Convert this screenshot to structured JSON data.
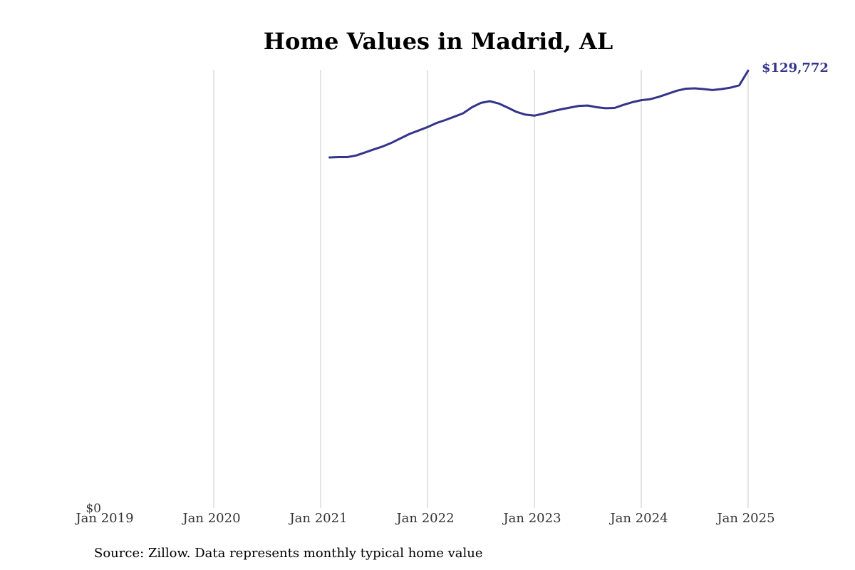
{
  "chart_data": {
    "type": "line",
    "title": "Home Values in Madrid, AL",
    "source": "Source: Zillow. Data represents monthly typical home value",
    "xlabel": "",
    "ylabel": "",
    "x_ticks": [
      "Jan 2019",
      "Jan 2020",
      "Jan 2021",
      "Jan 2022",
      "Jan 2023",
      "Jan 2024",
      "Jan 2025"
    ],
    "y_ticks": [
      "$0"
    ],
    "ylim": [
      0,
      130000
    ],
    "xlim": [
      "2019-01",
      "2025-01"
    ],
    "grid": "vertical",
    "legend": "none",
    "end_label": "$129,772",
    "line_color": "#34348a",
    "series": [
      {
        "x": [
          "2021-02",
          "2021-03",
          "2021-04",
          "2021-05",
          "2021-06",
          "2021-07",
          "2021-08",
          "2021-09",
          "2021-10",
          "2021-11",
          "2021-12",
          "2022-01",
          "2022-02",
          "2022-03",
          "2022-04",
          "2022-05",
          "2022-06",
          "2022-07",
          "2022-08",
          "2022-09",
          "2022-10",
          "2022-11",
          "2022-12",
          "2023-01",
          "2023-02",
          "2023-03",
          "2023-04",
          "2023-05",
          "2023-06",
          "2023-07",
          "2023-08",
          "2023-09",
          "2023-10",
          "2023-11",
          "2023-12",
          "2024-01",
          "2024-02",
          "2024-03",
          "2024-04",
          "2024-05",
          "2024-06",
          "2024-07",
          "2024-08",
          "2024-09",
          "2024-10",
          "2024-11",
          "2024-12",
          "2025-01"
        ],
        "values": [
          104000,
          104100,
          104100,
          104600,
          105500,
          106400,
          107300,
          108400,
          109700,
          111000,
          112000,
          113000,
          114200,
          115100,
          116100,
          117100,
          118900,
          120200,
          120700,
          120000,
          118800,
          117500,
          116700,
          116400,
          117000,
          117700,
          118300,
          118800,
          119300,
          119400,
          118900,
          118600,
          118700,
          119600,
          120400,
          121000,
          121300,
          122000,
          122900,
          123800,
          124400,
          124500,
          124300,
          124000,
          124300,
          124700,
          125400,
          129772
        ]
      }
    ]
  }
}
